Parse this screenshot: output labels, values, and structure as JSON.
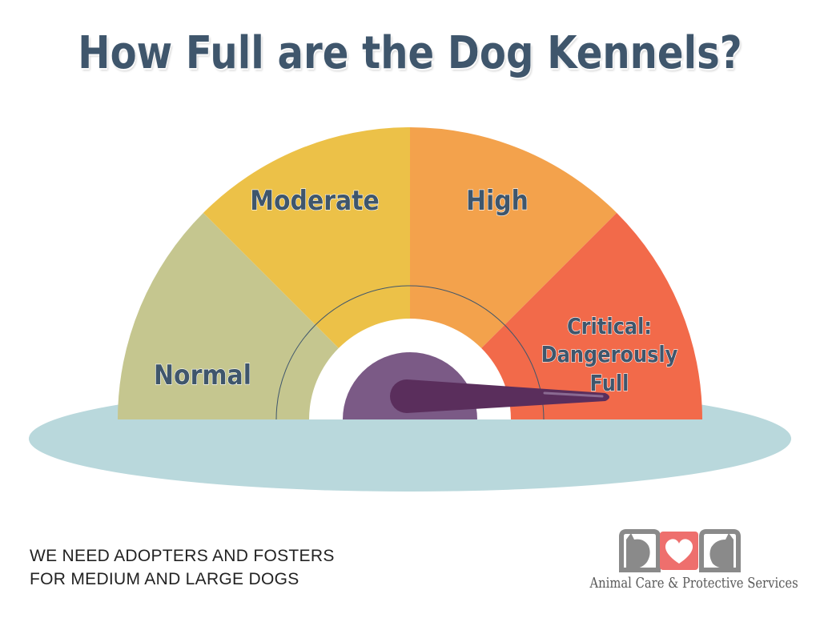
{
  "title": "How Full are the Dog Kennels?",
  "gauge": {
    "segments": [
      {
        "label": "Normal",
        "color": "#c5c68f"
      },
      {
        "label": "Moderate",
        "color": "#ecc148"
      },
      {
        "label": "High",
        "color": "#f3a24c"
      },
      {
        "label": "Critical: Dangerously Full",
        "label_lines": [
          "Critical:",
          "Dangerously",
          "Full"
        ],
        "color": "#f26a4a"
      }
    ],
    "current_level": "Critical: Dangerously Full",
    "needle_color": "#5a2e5c",
    "hub_color": "#7b5a86",
    "base_color": "#b9d8dc"
  },
  "message": {
    "line1": "WE NEED ADOPTERS AND FOSTERS",
    "line2": "FOR MEDIUM AND LARGE DOGS"
  },
  "organization": {
    "name": "Animal Care & Protective Services",
    "logo_icons": [
      "cat-silhouette-icon",
      "heart-icon",
      "dog-silhouette-icon"
    ],
    "logo_colors": [
      "#8a8a8a",
      "#ee6f6d"
    ]
  }
}
